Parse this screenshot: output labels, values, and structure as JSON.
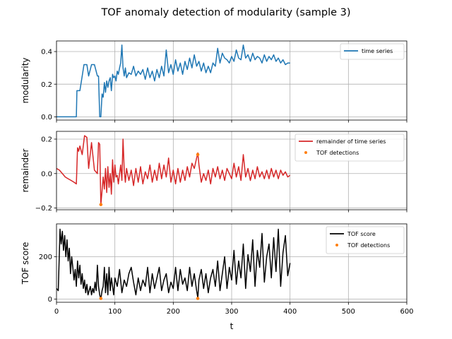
{
  "figure": {
    "title": "TOF anomaly detection of modularity (sample 3)"
  },
  "chart_data": [
    {
      "type": "line",
      "ylabel": "modularity",
      "xlabel": "",
      "xlim": [
        0,
        600
      ],
      "ylim": [
        -0.02,
        0.465
      ],
      "xticks": [
        0,
        100,
        200,
        300,
        400,
        500,
        600
      ],
      "yticks": [
        0.0,
        0.2,
        0.4
      ],
      "ytick_labels": [
        "0.0",
        "0.2",
        "0.4"
      ],
      "grid": true,
      "legend": {
        "position": "upper right"
      },
      "series": [
        {
          "name": "time series",
          "color": "#1f77b4",
          "x": [
            0,
            34,
            35,
            40,
            44,
            47,
            52,
            55,
            60,
            65,
            70,
            72,
            74,
            76,
            78,
            80,
            82,
            84,
            86,
            88,
            90,
            92,
            94,
            96,
            98,
            100,
            102,
            104,
            106,
            108,
            110,
            112,
            114,
            116,
            118,
            120,
            124,
            128,
            132,
            136,
            140,
            144,
            148,
            152,
            156,
            160,
            164,
            168,
            172,
            176,
            180,
            184,
            188,
            192,
            196,
            200,
            204,
            208,
            212,
            216,
            220,
            224,
            228,
            232,
            236,
            240,
            244,
            248,
            252,
            256,
            260,
            264,
            268,
            272,
            276,
            280,
            284,
            288,
            292,
            296,
            300,
            304,
            308,
            312,
            316,
            320,
            324,
            328,
            332,
            336,
            340,
            344,
            348,
            352,
            356,
            360,
            364,
            368,
            372,
            376,
            380,
            384,
            388,
            392,
            396,
            400
          ],
          "y": [
            0.0,
            0.0,
            0.16,
            0.16,
            0.25,
            0.32,
            0.32,
            0.25,
            0.32,
            0.32,
            0.25,
            0.25,
            0.0,
            0.0,
            0.14,
            0.12,
            0.21,
            0.15,
            0.22,
            0.18,
            0.22,
            0.24,
            0.16,
            0.26,
            0.24,
            0.25,
            0.22,
            0.28,
            0.26,
            0.3,
            0.33,
            0.44,
            0.3,
            0.25,
            0.3,
            0.24,
            0.27,
            0.26,
            0.31,
            0.25,
            0.28,
            0.26,
            0.29,
            0.23,
            0.3,
            0.24,
            0.28,
            0.22,
            0.29,
            0.24,
            0.31,
            0.25,
            0.41,
            0.27,
            0.32,
            0.26,
            0.35,
            0.28,
            0.33,
            0.26,
            0.34,
            0.29,
            0.36,
            0.3,
            0.38,
            0.31,
            0.34,
            0.28,
            0.33,
            0.27,
            0.31,
            0.27,
            0.33,
            0.31,
            0.42,
            0.33,
            0.39,
            0.36,
            0.35,
            0.33,
            0.37,
            0.34,
            0.41,
            0.36,
            0.35,
            0.44,
            0.36,
            0.38,
            0.34,
            0.39,
            0.35,
            0.37,
            0.36,
            0.33,
            0.38,
            0.34,
            0.37,
            0.35,
            0.38,
            0.34,
            0.36,
            0.33,
            0.35,
            0.32,
            0.33,
            0.33
          ]
        }
      ]
    },
    {
      "type": "line",
      "ylabel": "remainder",
      "xlabel": "",
      "xlim": [
        0,
        600
      ],
      "ylim": [
        -0.21,
        0.245
      ],
      "xticks": [
        0,
        100,
        200,
        300,
        400,
        500,
        600
      ],
      "yticks": [
        -0.2,
        0.0,
        0.2
      ],
      "ytick_labels": [
        "−0.2",
        "0.0",
        "0.2"
      ],
      "grid": true,
      "legend": {
        "position": "upper right"
      },
      "series": [
        {
          "name": "remainder of time series",
          "color": "#d62728",
          "x": [
            0,
            5,
            10,
            15,
            20,
            25,
            30,
            34,
            36,
            38,
            40,
            44,
            48,
            52,
            55,
            60,
            65,
            70,
            72,
            74,
            76,
            78,
            80,
            82,
            84,
            86,
            88,
            90,
            92,
            94,
            96,
            98,
            100,
            102,
            104,
            106,
            108,
            110,
            112,
            114,
            116,
            118,
            120,
            124,
            128,
            132,
            136,
            140,
            144,
            148,
            152,
            156,
            160,
            164,
            168,
            172,
            176,
            180,
            184,
            188,
            192,
            196,
            200,
            204,
            208,
            212,
            216,
            220,
            224,
            228,
            232,
            236,
            240,
            242,
            244,
            248,
            252,
            256,
            260,
            264,
            268,
            272,
            276,
            280,
            284,
            288,
            292,
            296,
            300,
            304,
            308,
            312,
            316,
            320,
            324,
            328,
            332,
            336,
            340,
            344,
            348,
            352,
            356,
            360,
            364,
            368,
            372,
            376,
            380,
            384,
            388,
            392,
            396,
            400
          ],
          "y": [
            0.03,
            0.02,
            0.0,
            -0.02,
            -0.03,
            -0.04,
            -0.05,
            -0.06,
            0.15,
            0.13,
            0.16,
            0.11,
            0.22,
            0.21,
            0.03,
            0.18,
            0.02,
            0.0,
            0.18,
            0.17,
            -0.18,
            -0.1,
            -0.02,
            -0.09,
            0.03,
            -0.11,
            0.04,
            -0.08,
            0.0,
            -0.12,
            0.08,
            -0.05,
            0.05,
            -0.02,
            -0.01,
            -0.06,
            0.0,
            0.05,
            -0.04,
            0.2,
            0.02,
            -0.05,
            0.03,
            -0.04,
            0.02,
            -0.07,
            0.03,
            -0.05,
            0.04,
            -0.06,
            0.01,
            -0.03,
            0.05,
            -0.05,
            0.02,
            -0.04,
            0.06,
            -0.03,
            0.05,
            -0.02,
            0.09,
            -0.05,
            0.02,
            -0.06,
            0.03,
            -0.05,
            0.02,
            -0.04,
            0.04,
            -0.02,
            0.06,
            0.03,
            0.09,
            0.12,
            0.05,
            -0.05,
            0.0,
            -0.04,
            0.02,
            -0.06,
            0.03,
            -0.02,
            0.04,
            -0.03,
            0.02,
            -0.04,
            0.03,
            0.0,
            -0.03,
            0.06,
            -0.02,
            0.04,
            -0.04,
            0.11,
            -0.02,
            0.03,
            -0.04,
            0.02,
            -0.03,
            0.04,
            -0.02,
            0.01,
            -0.03,
            0.02,
            -0.03,
            0.03,
            -0.02,
            0.02,
            -0.03,
            0.02,
            -0.01,
            0.01,
            -0.02,
            -0.01
          ]
        },
        {
          "name": "TOF detections",
          "type": "scatter",
          "color": "#ff7f0e",
          "x": [
            76,
            242
          ],
          "y": [
            -0.18,
            0.11
          ]
        }
      ]
    },
    {
      "type": "line",
      "ylabel": "TOF score",
      "xlabel": "t",
      "xlim": [
        0,
        600
      ],
      "ylim": [
        -15,
        355
      ],
      "xticks": [
        0,
        100,
        200,
        300,
        400,
        500,
        600
      ],
      "xtick_labels": [
        "0",
        "100",
        "200",
        "300",
        "400",
        "500",
        "600"
      ],
      "yticks": [
        0,
        200
      ],
      "ytick_labels": [
        "0",
        "200"
      ],
      "grid": true,
      "legend": {
        "position": "upper right"
      },
      "series": [
        {
          "name": "TOF score",
          "color": "#000000",
          "x": [
            0,
            3,
            6,
            8,
            10,
            12,
            14,
            16,
            18,
            20,
            22,
            24,
            26,
            28,
            30,
            32,
            34,
            36,
            38,
            40,
            42,
            44,
            46,
            48,
            50,
            52,
            54,
            56,
            58,
            60,
            62,
            64,
            66,
            68,
            70,
            72,
            74,
            76,
            78,
            80,
            82,
            84,
            86,
            88,
            90,
            92,
            94,
            96,
            98,
            100,
            104,
            108,
            112,
            116,
            120,
            124,
            128,
            132,
            136,
            140,
            144,
            148,
            152,
            156,
            160,
            164,
            168,
            172,
            176,
            180,
            184,
            188,
            192,
            196,
            200,
            204,
            208,
            212,
            216,
            220,
            224,
            228,
            232,
            236,
            240,
            242,
            244,
            248,
            252,
            256,
            260,
            264,
            268,
            272,
            276,
            280,
            284,
            288,
            292,
            296,
            300,
            304,
            308,
            312,
            316,
            320,
            324,
            328,
            332,
            336,
            340,
            344,
            348,
            352,
            356,
            360,
            364,
            368,
            372,
            376,
            380,
            384,
            388,
            392,
            396,
            400
          ],
          "y": [
            50,
            40,
            330,
            260,
            320,
            230,
            300,
            200,
            280,
            180,
            240,
            120,
            200,
            150,
            90,
            140,
            60,
            180,
            100,
            160,
            70,
            120,
            50,
            90,
            30,
            70,
            20,
            40,
            60,
            20,
            50,
            30,
            80,
            40,
            160,
            60,
            20,
            0,
            40,
            60,
            150,
            30,
            120,
            20,
            150,
            40,
            100,
            60,
            20,
            100,
            60,
            140,
            30,
            90,
            60,
            120,
            150,
            80,
            20,
            100,
            40,
            90,
            60,
            150,
            30,
            120,
            50,
            100,
            150,
            40,
            90,
            120,
            30,
            80,
            50,
            150,
            40,
            140,
            70,
            100,
            40,
            150,
            60,
            120,
            40,
            5,
            90,
            140,
            50,
            120,
            30,
            100,
            140,
            60,
            180,
            40,
            120,
            200,
            50,
            150,
            90,
            230,
            70,
            180,
            100,
            260,
            50,
            210,
            130,
            280,
            60,
            230,
            150,
            310,
            80,
            200,
            260,
            100,
            290,
            130,
            330,
            60,
            220,
            300,
            110,
            170
          ]
        },
        {
          "name": "TOF detections",
          "type": "scatter",
          "color": "#ff7f0e",
          "x": [
            76,
            242
          ],
          "y": [
            3,
            3
          ]
        }
      ]
    }
  ]
}
